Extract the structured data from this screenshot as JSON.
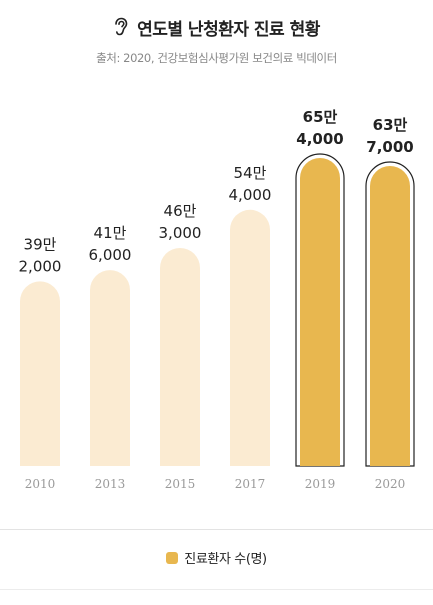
{
  "header": {
    "title": "연도별 난청환자 진료 현황",
    "source": "출처: 2020, 건강보험심사평가원 보건의료 빅데이터",
    "title_icon": "ear-icon"
  },
  "colors": {
    "bar_light": "#fbebd2",
    "bar_highlight": "#e8b74f",
    "outline": "#222222",
    "label": "#222222",
    "axis_label": "#9a9a9a"
  },
  "chart_data": {
    "type": "bar",
    "title": "연도별 난청환자 진료 현황",
    "categories": [
      "2010",
      "2013",
      "2015",
      "2017",
      "2019",
      "2020"
    ],
    "series": [
      {
        "name": "진료환자 수(명)",
        "values": [
          392000,
          416000,
          463000,
          544000,
          654000,
          637000
        ]
      }
    ],
    "value_labels": [
      [
        "39만",
        "2,000"
      ],
      [
        "41만",
        "6,000"
      ],
      [
        "46만",
        "3,000"
      ],
      [
        "54만",
        "4,000"
      ],
      [
        "65만",
        "4,000"
      ],
      [
        "63만",
        "7,000"
      ]
    ],
    "highlighted": [
      false,
      false,
      false,
      false,
      true,
      true
    ],
    "xlabel": "",
    "ylabel": "",
    "ylim": [
      0,
      654000
    ],
    "grid": false,
    "legend": "bottom-center"
  },
  "legend": {
    "label": "진료환자 수(명)"
  }
}
